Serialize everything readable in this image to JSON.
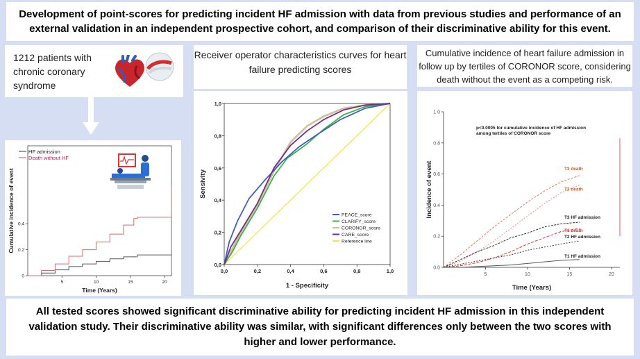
{
  "header": {
    "title": "Development of point-scores for predicting incident HF admission with data from previous studies and performance of an external validation in an independent prospective cohort, and comparison of their discriminative ability for this event."
  },
  "cohort": {
    "text": "1212 patients with chronic coronary syndrome",
    "icons": [
      "heart-icon",
      "bandage-icon",
      "down-arrow-icon",
      "patient-bed-icon"
    ]
  },
  "roc_panel": {
    "title": "Receiver operator characteristics curves for heart failure predicting scores"
  },
  "cif_panel": {
    "title": "Cumulative incidence of heart failure admission in follow up by tertiles of CORONOR score, considering death without the event as a competing risk."
  },
  "conclusion": {
    "text": "All tested scores showed significant discriminative ability for predicting incident HF admission in this independent validation study. Their discriminative ability was similar, with significant differences only between the two scores with higher and lower performance."
  },
  "chart_data": [
    {
      "type": "line",
      "title": "",
      "xlabel": "Time (Years)",
      "ylabel": "Cumulative incidence of event",
      "xlim": [
        0,
        21
      ],
      "ylim": [
        0,
        1
      ],
      "x_ticks": [
        "5",
        "10",
        "15",
        "20"
      ],
      "y_ticks": [
        "0",
        "0.2",
        "0.4"
      ],
      "legend_position": "top-left",
      "colors": {
        "HF admission": "#555555",
        "Death without HF": "#d86a6a"
      },
      "series": [
        {
          "name": "HF admission",
          "x": [
            0,
            2,
            4,
            6,
            8,
            10,
            12,
            14,
            16,
            18,
            21
          ],
          "y": [
            0,
            0.02,
            0.045,
            0.07,
            0.09,
            0.11,
            0.13,
            0.145,
            0.16,
            0.16,
            0.16
          ]
        },
        {
          "name": "Death without HF",
          "x": [
            0,
            2,
            4,
            6,
            8,
            10,
            12,
            14,
            15.5,
            16,
            18,
            21
          ],
          "y": [
            0,
            0.04,
            0.09,
            0.15,
            0.2,
            0.26,
            0.32,
            0.39,
            0.44,
            0.45,
            0.45,
            0.45
          ]
        }
      ]
    },
    {
      "type": "line",
      "title": "",
      "xlabel": "1 - Specificity",
      "ylabel": "Sensivity",
      "xlim": [
        0,
        1
      ],
      "ylim": [
        0,
        1
      ],
      "x_ticks": [
        "0,0",
        "0,2",
        "0,4",
        "0,6",
        "0,8",
        "1,0"
      ],
      "y_ticks": [
        "0,0",
        "0,2",
        "0,4",
        "0,6",
        "0,8",
        "1,0"
      ],
      "legend_position": "bottom-right",
      "colors": {
        "PEACE_score": "#3c5fbf",
        "CLARIFY_score": "#3db24a",
        "CORONOR_score": "#c9c29a",
        "CARE_score": "#7b2a8f",
        "Reference line": "#f2e84a"
      },
      "series": [
        {
          "name": "PEACE_score",
          "x": [
            0,
            0.03,
            0.08,
            0.15,
            0.25,
            0.35,
            0.45,
            0.55,
            0.7,
            0.85,
            1
          ],
          "y": [
            0,
            0.14,
            0.27,
            0.41,
            0.53,
            0.64,
            0.73,
            0.8,
            0.9,
            0.97,
            1
          ]
        },
        {
          "name": "CLARIFY_score",
          "x": [
            0,
            0.05,
            0.1,
            0.2,
            0.3,
            0.38,
            0.5,
            0.6,
            0.72,
            0.85,
            1
          ],
          "y": [
            0,
            0.08,
            0.18,
            0.35,
            0.55,
            0.66,
            0.75,
            0.84,
            0.93,
            0.98,
            1
          ]
        },
        {
          "name": "CORONOR_score",
          "x": [
            0,
            0.05,
            0.1,
            0.2,
            0.3,
            0.4,
            0.5,
            0.6,
            0.72,
            0.85,
            1
          ],
          "y": [
            0,
            0.1,
            0.2,
            0.37,
            0.58,
            0.76,
            0.86,
            0.92,
            0.97,
            0.99,
            1
          ]
        },
        {
          "name": "CARE_score",
          "x": [
            0,
            0.04,
            0.1,
            0.2,
            0.3,
            0.4,
            0.5,
            0.6,
            0.72,
            0.85,
            1
          ],
          "y": [
            0,
            0.11,
            0.21,
            0.38,
            0.6,
            0.74,
            0.83,
            0.9,
            0.96,
            0.99,
            1
          ]
        },
        {
          "name": "Reference line",
          "x": [
            0,
            1
          ],
          "y": [
            0,
            1
          ]
        }
      ]
    },
    {
      "type": "line",
      "title": "",
      "xlabel": "Time (Years)",
      "ylabel": "Incidence of event",
      "xlim": [
        0,
        21
      ],
      "ylim": [
        0,
        1
      ],
      "x_ticks": [
        "5",
        "10",
        "15",
        "20"
      ],
      "y_ticks": [
        "0.0",
        "0.2",
        "0.4",
        "0.6",
        "0.8",
        "1.0"
      ],
      "annotation": "p<0.0005 for cumulative incidence of HF admission among tertiles of CORONOR score",
      "colors": {
        "T3 death": "#e8735a",
        "T2 death": "#f08a8a",
        "T1 death": "#e03030",
        "T3 HF admission": "#333333",
        "T2 HF admission": "#333333",
        "T1 HF admission": "#555555"
      },
      "series": [
        {
          "name": "T3 death",
          "x": [
            0,
            2,
            4,
            6,
            8,
            10,
            12,
            14,
            16.2
          ],
          "y": [
            0,
            0.08,
            0.17,
            0.26,
            0.34,
            0.42,
            0.49,
            0.55,
            0.59
          ]
        },
        {
          "name": "T2 death",
          "x": [
            0,
            2,
            4,
            6,
            8,
            10,
            12,
            14,
            16.2
          ],
          "y": [
            0,
            0.04,
            0.1,
            0.17,
            0.25,
            0.33,
            0.41,
            0.48,
            0.53
          ]
        },
        {
          "name": "T3 HF admission",
          "x": [
            0,
            2,
            4,
            6,
            8,
            10,
            12,
            14,
            16.2
          ],
          "y": [
            0,
            0.05,
            0.1,
            0.14,
            0.19,
            0.22,
            0.26,
            0.28,
            0.29
          ]
        },
        {
          "name": "T1 death",
          "x": [
            0,
            2,
            4,
            6,
            8,
            10,
            12,
            14,
            16.2
          ],
          "y": [
            0,
            0.01,
            0.03,
            0.06,
            0.1,
            0.15,
            0.19,
            0.23,
            0.25
          ]
        },
        {
          "name": "T2 HF admission",
          "x": [
            0,
            2,
            4,
            6,
            8,
            10,
            12,
            14,
            16.2
          ],
          "y": [
            0,
            0.02,
            0.04,
            0.06,
            0.08,
            0.11,
            0.13,
            0.15,
            0.17
          ]
        },
        {
          "name": "T1 HF admission",
          "x": [
            0,
            2,
            4,
            6,
            8,
            10,
            12,
            14,
            16.2
          ],
          "y": [
            0,
            0.0,
            0.005,
            0.01,
            0.015,
            0.025,
            0.035,
            0.045,
            0.05
          ]
        }
      ]
    }
  ]
}
